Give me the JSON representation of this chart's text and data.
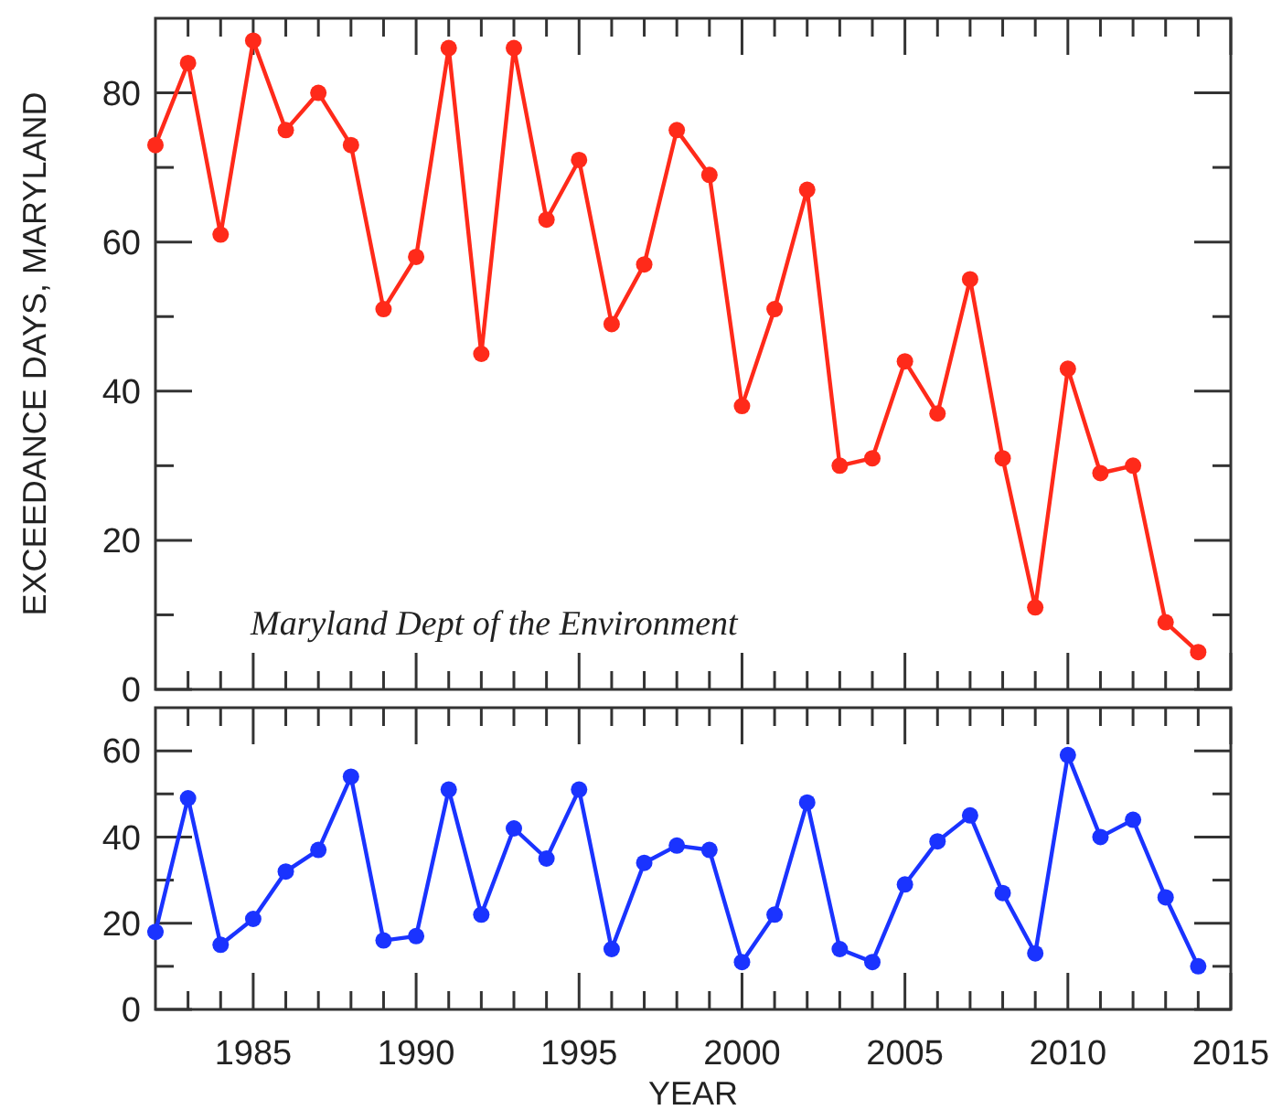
{
  "chart_data": [
    {
      "type": "line",
      "ylabel": "EXCEEDANCE DAYS, MARYLAND",
      "annotations": [
        "Maryland Dept of the Environment"
      ],
      "marker": "circle",
      "line_style": "solid",
      "tick_labels": "y",
      "x": [
        1982,
        1983,
        1984,
        1985,
        1986,
        1987,
        1988,
        1989,
        1990,
        1991,
        1992,
        1993,
        1994,
        1995,
        1996,
        1997,
        1998,
        1999,
        2000,
        2001,
        2002,
        2003,
        2004,
        2005,
        2006,
        2007,
        2008,
        2009,
        2010,
        2011,
        2012,
        2013,
        2014
      ],
      "series": [
        {
          "color": "#ff2a1a",
          "values": [
            73,
            84,
            61,
            87,
            75,
            80,
            73,
            51,
            58,
            86,
            45,
            86,
            63,
            71,
            49,
            57,
            75,
            69,
            38,
            51,
            67,
            30,
            31,
            44,
            37,
            55,
            31,
            11,
            43,
            29,
            30,
            9,
            5
          ]
        }
      ],
      "xlim": [
        1982,
        2015
      ],
      "ylim": [
        0,
        90
      ],
      "yticks": [
        0,
        {
          "value": 10,
          "label": null
        },
        20,
        {
          "value": 30,
          "label": null
        },
        40,
        {
          "value": 50,
          "label": null
        },
        60,
        {
          "value": 70,
          "label": null
        },
        80
      ]
    },
    {
      "type": "line",
      "xlabel": "YEAR",
      "marker": "circle",
      "line_style": "solid",
      "x": [
        1982,
        1983,
        1984,
        1985,
        1986,
        1987,
        1988,
        1989,
        1990,
        1991,
        1992,
        1993,
        1994,
        1995,
        1996,
        1997,
        1998,
        1999,
        2000,
        2001,
        2002,
        2003,
        2004,
        2005,
        2006,
        2007,
        2008,
        2009,
        2010,
        2011,
        2012,
        2013,
        2014
      ],
      "series": [
        {
          "color": "#1a33ff",
          "values": [
            18,
            49,
            15,
            21,
            32,
            37,
            54,
            16,
            17,
            51,
            22,
            42,
            35,
            51,
            14,
            34,
            38,
            37,
            11,
            22,
            48,
            14,
            11,
            29,
            39,
            45,
            27,
            13,
            59,
            40,
            44,
            26,
            10
          ]
        }
      ],
      "xlim": [
        1982,
        2015
      ],
      "xticks": [
        {
          "value": 1983,
          "label": null
        },
        {
          "value": 1984,
          "label": null
        },
        {
          "value": 1985,
          "label": "1985"
        },
        {
          "value": 1986,
          "label": null
        },
        {
          "value": 1987,
          "label": null
        },
        {
          "value": 1988,
          "label": null
        },
        {
          "value": 1989,
          "label": null
        },
        {
          "value": 1990,
          "label": "1990"
        },
        {
          "value": 1991,
          "label": null
        },
        {
          "value": 1992,
          "label": null
        },
        {
          "value": 1993,
          "label": null
        },
        {
          "value": 1994,
          "label": null
        },
        {
          "value": 1995,
          "label": "1995"
        },
        {
          "value": 1996,
          "label": null
        },
        {
          "value": 1997,
          "label": null
        },
        {
          "value": 1998,
          "label": null
        },
        {
          "value": 1999,
          "label": null
        },
        {
          "value": 2000,
          "label": "2000"
        },
        {
          "value": 2001,
          "label": null
        },
        {
          "value": 2002,
          "label": null
        },
        {
          "value": 2003,
          "label": null
        },
        {
          "value": 2004,
          "label": null
        },
        {
          "value": 2005,
          "label": "2005"
        },
        {
          "value": 2006,
          "label": null
        },
        {
          "value": 2007,
          "label": null
        },
        {
          "value": 2008,
          "label": null
        },
        {
          "value": 2009,
          "label": null
        },
        {
          "value": 2010,
          "label": "2010"
        },
        {
          "value": 2011,
          "label": null
        },
        {
          "value": 2012,
          "label": null
        },
        {
          "value": 2013,
          "label": null
        },
        {
          "value": 2014,
          "label": null
        },
        {
          "value": 2015,
          "label": "2015"
        }
      ],
      "ylim": [
        0,
        70
      ],
      "yticks": [
        0,
        {
          "value": 10,
          "label": null
        },
        20,
        {
          "value": 30,
          "label": null
        },
        40,
        {
          "value": 50,
          "label": null
        },
        60
      ]
    }
  ]
}
